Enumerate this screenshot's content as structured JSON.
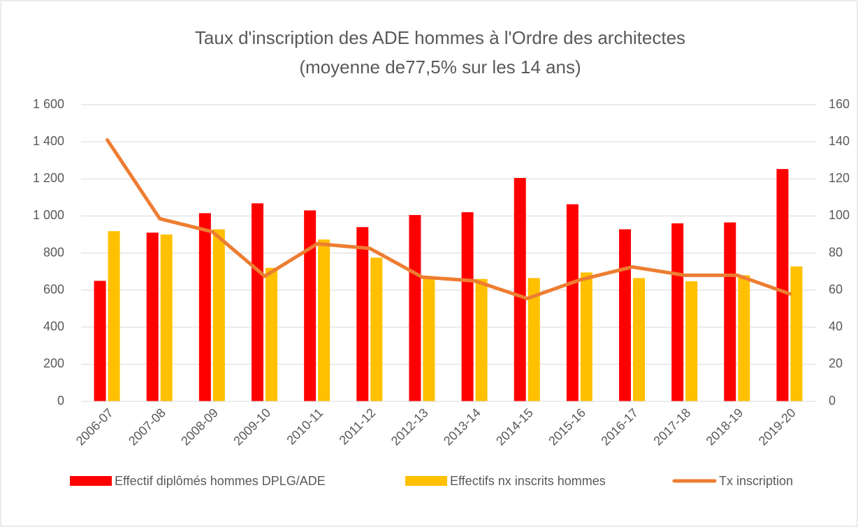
{
  "chart_data": {
    "type": "bar",
    "title": [
      "Taux d'inscription des ADE hommes à l'Ordre des architectes",
      "(moyenne de77,5% sur les 14 ans)"
    ],
    "categories": [
      "2006-07",
      "2007-08",
      "2008-09",
      "2009-10",
      "2010-11",
      "2011-12",
      "2012-13",
      "2013-14",
      "2014-15",
      "2015-16",
      "2016-17",
      "2017-18",
      "2018-19",
      "2019-20"
    ],
    "series": [
      {
        "name": "Effectif diplômés hommes DPLG/ADE",
        "type": "bar",
        "color": "#ff0000",
        "values": [
          650,
          910,
          1015,
          1068,
          1030,
          940,
          1005,
          1020,
          1205,
          1063,
          928,
          960,
          965,
          1253
        ]
      },
      {
        "name": "Effectifs nx inscrits hommes",
        "type": "bar",
        "color": "#ffc000",
        "values": [
          918,
          900,
          928,
          720,
          873,
          775,
          665,
          660,
          665,
          695,
          665,
          648,
          680,
          728
        ]
      },
      {
        "name": "Tx inscription",
        "type": "line",
        "axis": "y2",
        "color": "#ed7d31",
        "values": [
          141,
          98.5,
          91.5,
          67.5,
          85,
          82.5,
          67,
          65,
          55.5,
          65.5,
          72.5,
          68,
          68,
          58
        ]
      }
    ],
    "ylim": [
      0,
      1600
    ],
    "yticks": [
      0,
      200,
      400,
      600,
      800,
      {
        "value": 1000,
        "label": "1 000"
      },
      {
        "value": 1200,
        "label": "1 200"
      },
      {
        "value": 1400,
        "label": "1 400"
      },
      {
        "value": 1600,
        "label": "1 600"
      }
    ],
    "y2lim": [
      0,
      160
    ],
    "y2ticks": [
      0,
      20,
      40,
      60,
      80,
      100,
      120,
      140,
      160
    ],
    "grid": true,
    "legend": "bottom"
  }
}
